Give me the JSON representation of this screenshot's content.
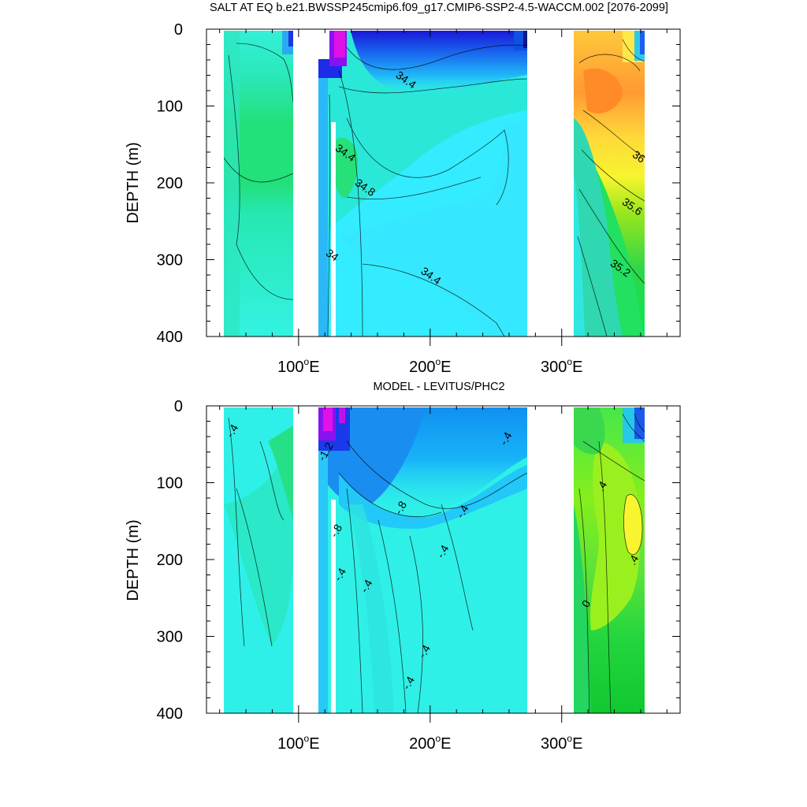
{
  "chart_data": [
    {
      "type": "contour",
      "title": "SALT AT EQ b.e21.BWSSP245cmip6.f09_g17.CMIP6-SSP2-4.5-WACCM.002 [2076-2099]",
      "xlabel": "",
      "ylabel": "DEPTH (m)",
      "xlim": [
        30,
        390
      ],
      "ylim": [
        0,
        400
      ],
      "y_reversed": true,
      "y_ticks": [
        "0",
        "100",
        "200",
        "300",
        "400"
      ],
      "x_ticks": [
        {
          "value": 100,
          "label": "100",
          "suffix": "o",
          "unit": "E"
        },
        {
          "value": 200,
          "label": "200",
          "suffix": "o",
          "unit": "E"
        },
        {
          "value": 300,
          "label": "300",
          "suffix": "o",
          "unit": "E"
        }
      ],
      "land_gaps_lon": [
        [
          97,
          118
        ],
        [
          129,
          131
        ],
        [
          279,
          314
        ],
        [
          370,
          390
        ]
      ],
      "contour_labels": [
        {
          "text": "34.4",
          "lon": 180,
          "depth": 70
        },
        {
          "text": "34.4",
          "lon": 134,
          "depth": 165
        },
        {
          "text": "34.8",
          "lon": 149,
          "depth": 210
        },
        {
          "text": "34",
          "lon": 124,
          "depth": 298
        },
        {
          "text": "34.4",
          "lon": 199,
          "depth": 325
        },
        {
          "text": "36",
          "lon": 357,
          "depth": 170
        },
        {
          "text": "35.6",
          "lon": 352,
          "depth": 235
        },
        {
          "text": "35.2",
          "lon": 343,
          "depth": 315
        }
      ],
      "regions": [
        {
          "name": "west-basin",
          "lon": [
            45,
            97
          ],
          "field": "cyan-green"
        },
        {
          "name": "pacific",
          "lon": [
            118,
            279
          ],
          "field": "cyan"
        },
        {
          "name": "atlantic",
          "lon": [
            314,
            370
          ],
          "field": "warm-high-salinity"
        }
      ]
    },
    {
      "type": "contour",
      "title": "MODEL - LEVITUS/PHC2",
      "xlabel": "",
      "ylabel": "DEPTH (m)",
      "xlim": [
        30,
        390
      ],
      "ylim": [
        0,
        400
      ],
      "y_reversed": true,
      "y_ticks": [
        "0",
        "100",
        "200",
        "300",
        "400"
      ],
      "x_ticks": [
        {
          "value": 100,
          "label": "100",
          "suffix": "o",
          "unit": "E"
        },
        {
          "value": 200,
          "label": "200",
          "suffix": "o",
          "unit": "E"
        },
        {
          "value": 300,
          "label": "300",
          "suffix": "o",
          "unit": "E"
        }
      ],
      "land_gaps_lon": [
        [
          97,
          118
        ],
        [
          129,
          131
        ],
        [
          279,
          314
        ],
        [
          370,
          390
        ]
      ],
      "contour_labels": [
        {
          "text": "-.4",
          "lon": 52,
          "depth": 35
        },
        {
          "text": "-1.2",
          "lon": 123,
          "depth": 62
        },
        {
          "text": "-.8",
          "lon": 180,
          "depth": 135
        },
        {
          "text": "-.4",
          "lon": 227,
          "depth": 140
        },
        {
          "text": "-.8",
          "lon": 131,
          "depth": 165
        },
        {
          "text": "-.4",
          "lon": 212,
          "depth": 192
        },
        {
          "text": "-.4",
          "lon": 134,
          "depth": 222
        },
        {
          "text": "-.4",
          "lon": 154,
          "depth": 237
        },
        {
          "text": "-.4",
          "lon": 260,
          "depth": 45
        },
        {
          "text": ".4",
          "lon": 333,
          "depth": 107
        },
        {
          "text": ".4",
          "lon": 357,
          "depth": 203
        },
        {
          "text": "0",
          "lon": 321,
          "depth": 260
        },
        {
          "text": "-.4",
          "lon": 198,
          "depth": 322
        },
        {
          "text": "-.4",
          "lon": 186,
          "depth": 363
        }
      ],
      "regions": [
        {
          "name": "west-basin",
          "lon": [
            45,
            97
          ],
          "field": "cyan-green"
        },
        {
          "name": "pacific",
          "lon": [
            118,
            279
          ],
          "field": "blue-cyan"
        },
        {
          "name": "atlantic",
          "lon": [
            314,
            370
          ],
          "field": "green-yellow"
        }
      ]
    }
  ]
}
